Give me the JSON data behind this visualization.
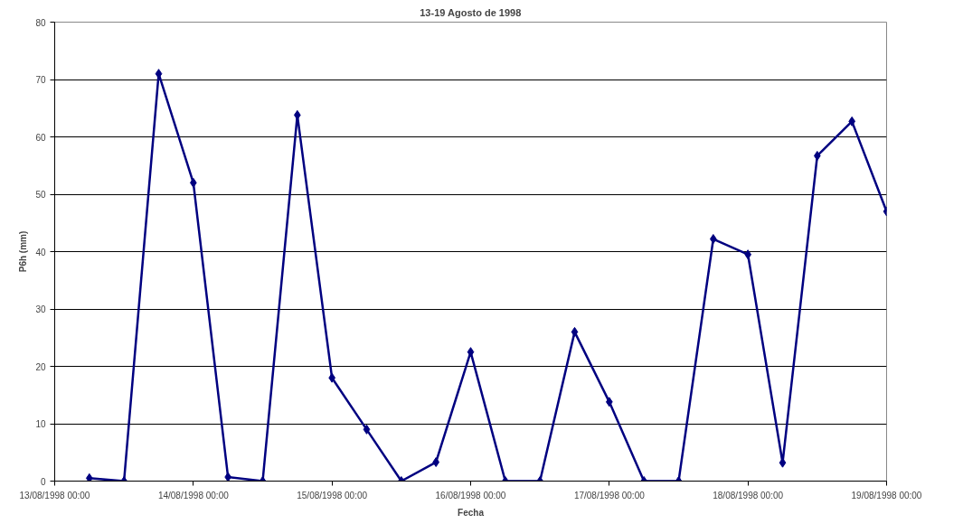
{
  "chart_data": {
    "type": "line",
    "title": "13-19 Agosto de 1998",
    "xlabel": "Fecha",
    "ylabel": "P6h (mm)",
    "x": [
      "1998-08-13T06:00",
      "1998-08-13T12:00",
      "1998-08-13T18:00",
      "1998-08-14T00:00",
      "1998-08-14T06:00",
      "1998-08-14T12:00",
      "1998-08-14T18:00",
      "1998-08-15T00:00",
      "1998-08-15T06:00",
      "1998-08-15T12:00",
      "1998-08-15T18:00",
      "1998-08-16T00:00",
      "1998-08-16T06:00",
      "1998-08-16T12:00",
      "1998-08-16T18:00",
      "1998-08-17T00:00",
      "1998-08-17T06:00",
      "1998-08-17T12:00",
      "1998-08-17T18:00",
      "1998-08-18T00:00",
      "1998-08-18T06:00",
      "1998-08-18T12:00",
      "1998-08-18T18:00",
      "1998-08-19T00:00"
    ],
    "series": [
      {
        "color": "#000080",
        "values": [
          0.5,
          0,
          71,
          52,
          0.7,
          0,
          63.8,
          18,
          9,
          0,
          3.3,
          22.5,
          0,
          0,
          26,
          13.8,
          0,
          0,
          42.2,
          39.5,
          3.2,
          56.7,
          62.7,
          47
        ]
      }
    ],
    "xlim": [
      "1998-08-13T00:00",
      "1998-08-19T00:00"
    ],
    "xticks": [
      {
        "value": "1998-08-13T00:00",
        "label": "13/08/1998 00:00"
      },
      {
        "value": "1998-08-14T00:00",
        "label": "14/08/1998 00:00"
      },
      {
        "value": "1998-08-15T00:00",
        "label": "15/08/1998 00:00"
      },
      {
        "value": "1998-08-16T00:00",
        "label": "16/08/1998 00:00"
      },
      {
        "value": "1998-08-17T00:00",
        "label": "17/08/1998 00:00"
      },
      {
        "value": "1998-08-18T00:00",
        "label": "18/08/1998 00:00"
      },
      {
        "value": "1998-08-19T00:00",
        "label": "19/08/1998 00:00"
      }
    ],
    "ylim": [
      0,
      80
    ],
    "yticks": [
      0,
      10,
      20,
      30,
      40,
      50,
      60,
      70,
      80
    ],
    "grid": "y",
    "marker": "diamond",
    "line_style": "solid"
  }
}
